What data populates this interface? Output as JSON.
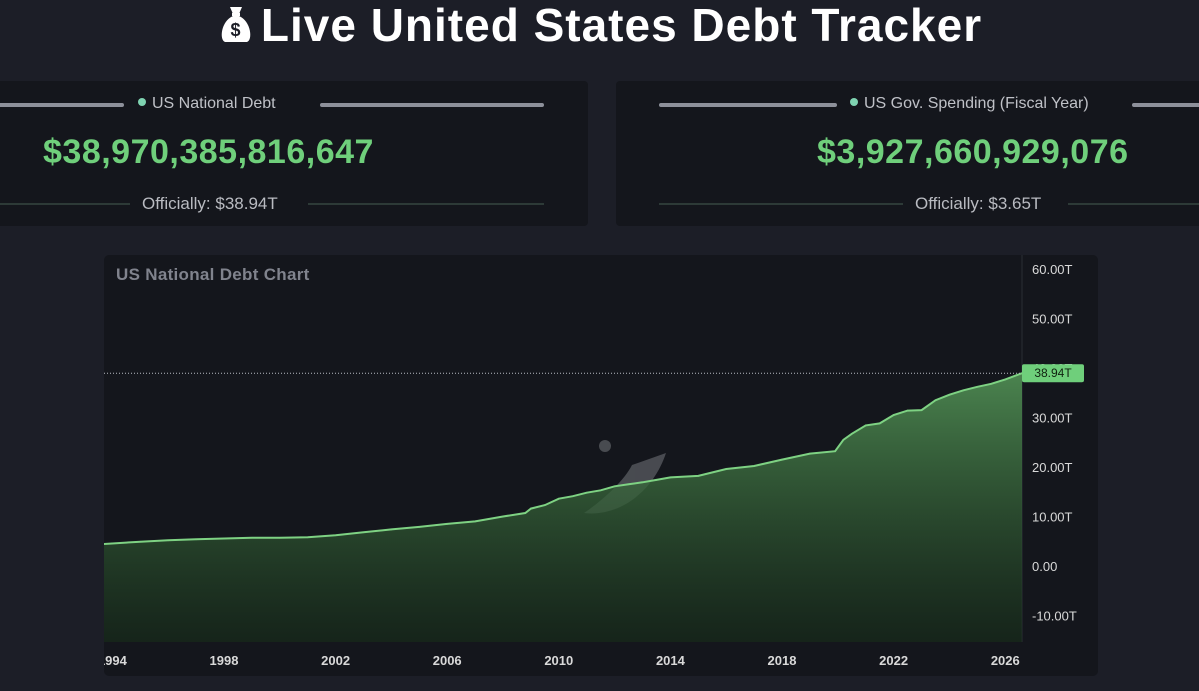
{
  "header": {
    "title": "Live United States Debt Tracker",
    "icon": "money-bag-icon"
  },
  "cards": [
    {
      "label": "US National Debt",
      "value": "$38,970,385,816,647",
      "official": "Officially: $38.94T"
    },
    {
      "label": "US Gov. Spending (Fiscal Year)",
      "value": "$3,927,660,929,076",
      "official": "Officially: $3.65T"
    }
  ],
  "colors": {
    "accent": "#6fcf7b",
    "background": "#1c1e27",
    "panel": "#14161c",
    "line": "#7ed283"
  },
  "chart_data": {
    "type": "area",
    "title": "US National Debt Chart",
    "xlabel": "",
    "ylabel": "",
    "x_ticks": [
      "1994",
      "1998",
      "2002",
      "2006",
      "2010",
      "2014",
      "2018",
      "2022",
      "2026"
    ],
    "y_ticks": [
      "60.00T",
      "50.00T",
      "40.00T",
      "30.00T",
      "20.00T",
      "10.00T",
      "0.00",
      "-10.00T"
    ],
    "ylim": [
      -10,
      60
    ],
    "xlim": [
      1993.7,
      2026.6
    ],
    "y_unit": "T",
    "current_label": "38.94T",
    "current_value": 38.94,
    "series": [
      {
        "x": [
          1993.7,
          1995,
          1996,
          1997,
          1998,
          1999,
          2000,
          2001,
          2002,
          2003,
          2004,
          2005,
          2006,
          2007,
          2008,
          2008.8,
          2009,
          2009.5,
          2010,
          2010.5,
          2011,
          2011.5,
          2012,
          2012.5,
          2013,
          2013.5,
          2014,
          2015,
          2016,
          2017,
          2018,
          2019,
          2019.9,
          2020.2,
          2020.5,
          2021,
          2021.5,
          2022,
          2022.5,
          2023,
          2023.5,
          2024,
          2024.5,
          2025,
          2025.5,
          2026,
          2026.6
        ],
        "values": [
          4.45,
          4.9,
          5.2,
          5.4,
          5.55,
          5.7,
          5.7,
          5.8,
          6.2,
          6.8,
          7.4,
          7.9,
          8.5,
          9.0,
          10.0,
          10.7,
          11.6,
          12.3,
          13.6,
          14.1,
          14.8,
          15.3,
          16.1,
          16.5,
          16.9,
          17.4,
          17.9,
          18.2,
          19.6,
          20.2,
          21.5,
          22.7,
          23.2,
          25.5,
          26.7,
          28.4,
          28.8,
          30.5,
          31.4,
          31.5,
          33.5,
          34.6,
          35.5,
          36.2,
          36.8,
          37.7,
          38.94
        ]
      }
    ],
    "grid": false,
    "legend": "none",
    "watermark": "tradingview-logo-icon"
  }
}
